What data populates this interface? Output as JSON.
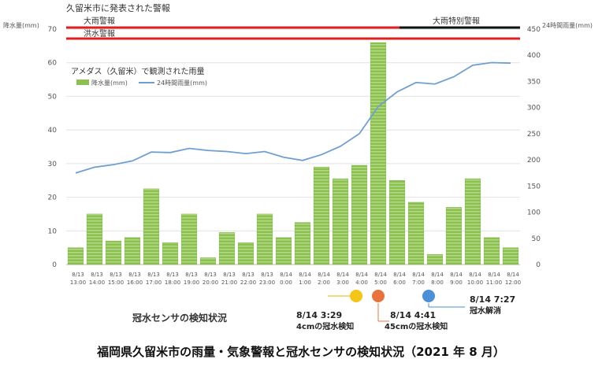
{
  "chart_data": {
    "type": "bar+line",
    "y_left_label": "降水量(mm)",
    "y_right_label": "24時間雨量(mm)",
    "y_left_ticks": [
      "0",
      "10",
      "20",
      "30",
      "40",
      "50",
      "60",
      "70"
    ],
    "y_right_ticks": [
      "0",
      "50",
      "100",
      "150",
      "200",
      "250",
      "300",
      "350",
      "400",
      "450"
    ],
    "ylim_left": [
      0,
      70
    ],
    "ylim_right": [
      0,
      450
    ],
    "grid": true,
    "categories": [
      [
        "8/13",
        "13:00"
      ],
      [
        "8/13",
        "14:00"
      ],
      [
        "8/13",
        "15:00"
      ],
      [
        "8/13",
        "16:00"
      ],
      [
        "8/13",
        "17:00"
      ],
      [
        "8/13",
        "18:00"
      ],
      [
        "8/13",
        "19:00"
      ],
      [
        "8/13",
        "20:00"
      ],
      [
        "8/13",
        "21:00"
      ],
      [
        "8/13",
        "22:00"
      ],
      [
        "8/13",
        "23:00"
      ],
      [
        "8/14",
        "0:00"
      ],
      [
        "8/14",
        "1:00"
      ],
      [
        "8/14",
        "2:00"
      ],
      [
        "8/14",
        "3:00"
      ],
      [
        "8/14",
        "4:00"
      ],
      [
        "8/14",
        "5:00"
      ],
      [
        "8/14",
        "6:00"
      ],
      [
        "8/14",
        "7:00"
      ],
      [
        "8/14",
        "8:00"
      ],
      [
        "8/14",
        "9:00"
      ],
      [
        "8/14",
        "10:00"
      ],
      [
        "8/14",
        "11:00"
      ],
      [
        "8/14",
        "12:00"
      ]
    ],
    "series": [
      {
        "name": "降水量(mm)",
        "type": "bar",
        "axis": "left",
        "color": "#8cc152",
        "values": [
          5,
          15,
          7,
          8,
          22.5,
          6.5,
          15,
          2,
          9.5,
          6.5,
          15,
          8,
          12.5,
          29,
          25.5,
          29.5,
          66,
          25,
          18.5,
          3,
          17,
          25.5,
          8,
          5
        ]
      },
      {
        "name": "24時間雨量(mm)",
        "type": "line",
        "axis": "right",
        "color": "#6f9fd2",
        "values": [
          175,
          186,
          191,
          198,
          215,
          214,
          222,
          218,
          216,
          212,
          216,
          205,
          199,
          210,
          226,
          250,
          302,
          330,
          348,
          345,
          359,
          381,
          386,
          385
        ]
      }
    ],
    "legend_title": "アメダス（久留米）で観測された雨量",
    "legend_position": "upper-left"
  },
  "warnings": {
    "title": "久留米市に発表された警報",
    "heavy_rain": "大雨警報",
    "heavy_rain_special": "大雨特別警報",
    "flood": "洪水警報"
  },
  "sensor": {
    "section_title": "冠水センサの検知状況",
    "events": [
      {
        "color": "#f5c518",
        "time": "8/14 3:29",
        "desc": "4cmの冠水検知"
      },
      {
        "color": "#e8743b",
        "time": "8/14 4:41",
        "desc": "45cmの冠水検知"
      },
      {
        "color": "#4b8fd6",
        "time": "8/14 7:27",
        "desc": "冠水解消"
      }
    ]
  },
  "caption": "福岡県久留米市の雨量・気象警報と冠水センサの検知状況（2021 年 8 月）"
}
